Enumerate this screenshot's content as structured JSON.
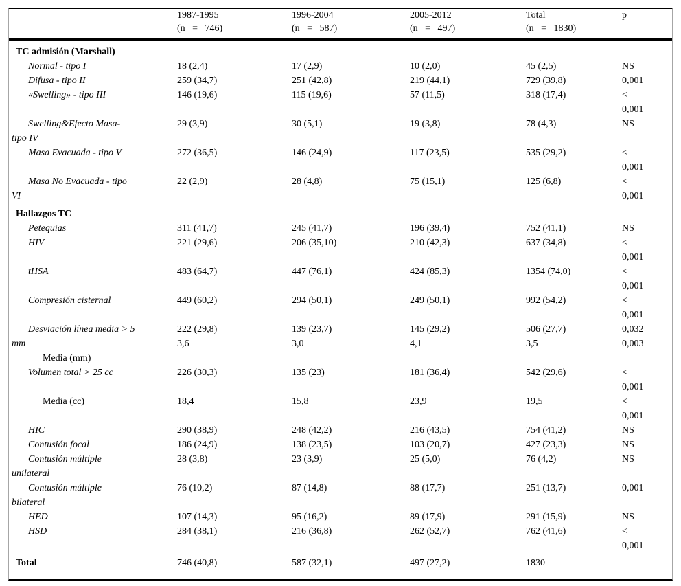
{
  "colors": {
    "background": "#ffffff",
    "text": "#000000",
    "rule": "#000000",
    "edge_line": "#a6a6a6"
  },
  "table": {
    "header": {
      "columns": [
        {
          "line1": "1987-1995",
          "line2": "(n   =   746)"
        },
        {
          "line1": "1996-2004",
          "line2": "(n   =   587)"
        },
        {
          "line1": "2005-2012",
          "line2": "(n   =   497)"
        },
        {
          "line1": "Total",
          "line2": "(n   =   1830)"
        },
        {
          "line1": "p",
          "line2": ""
        }
      ]
    },
    "rows": [
      {
        "label": [
          "TC admisión (Marshall)"
        ],
        "label_styles": [
          "section"
        ],
        "cells": [
          [],
          [],
          [],
          [],
          []
        ],
        "gap": 0
      },
      {
        "label": [
          "Normal - tipo I"
        ],
        "label_styles": [
          "item"
        ],
        "cells": [
          [
            "18 (2,4)"
          ],
          [
            "17 (2,9)"
          ],
          [
            "10 (2,0)"
          ],
          [
            "45 (2,5)"
          ],
          [
            "NS"
          ]
        ],
        "gap": 0
      },
      {
        "label": [
          "Difusa - tipo II"
        ],
        "label_styles": [
          "item"
        ],
        "cells": [
          [
            "259 (34,7)"
          ],
          [
            "251 (42,8)"
          ],
          [
            "219 (44,1)"
          ],
          [
            "729 (39,8)"
          ],
          [
            "0,001"
          ]
        ],
        "gap": 0
      },
      {
        "label": [
          "«Swelling» - tipo III"
        ],
        "label_styles": [
          "item"
        ],
        "cells": [
          [
            "146 (19,6)"
          ],
          [
            "115 (19,6)"
          ],
          [
            "57 (11,5)"
          ],
          [
            "318 (17,4)"
          ],
          [
            "<",
            "0,001"
          ]
        ],
        "gap": 0
      },
      {
        "label": [
          "Swelling&Efecto Masa-",
          "tipo IV"
        ],
        "label_styles": [
          "item",
          "cont"
        ],
        "cells": [
          [
            "29 (3,9)"
          ],
          [
            "30 (5,1)"
          ],
          [
            "19 (3,8)"
          ],
          [
            "78 (4,3)"
          ],
          [
            "NS"
          ]
        ],
        "gap": 0
      },
      {
        "label": [
          "Masa Evacuada - tipo V"
        ],
        "label_styles": [
          "item"
        ],
        "cells": [
          [
            "272 (36,5)"
          ],
          [
            "146 (24,9)"
          ],
          [
            "117 (23,5)"
          ],
          [
            "535 (29,2)"
          ],
          [
            "<",
            "0,001"
          ]
        ],
        "gap": 0
      },
      {
        "label": [
          "Masa No Evacuada - tipo",
          "VI"
        ],
        "label_styles": [
          "item",
          "cont"
        ],
        "cells": [
          [
            "22 (2,9)"
          ],
          [
            "28 (4,8)"
          ],
          [
            "75 (15,1)"
          ],
          [
            "125 (6,8)"
          ],
          [
            "<",
            "0,001"
          ]
        ],
        "gap": 0
      },
      {
        "label": [
          "Hallazgos TC"
        ],
        "label_styles": [
          "section"
        ],
        "cells": [
          [],
          [],
          [],
          [],
          []
        ],
        "gap": 5
      },
      {
        "label": [
          "Petequias"
        ],
        "label_styles": [
          "item"
        ],
        "cells": [
          [
            "311 (41,7)"
          ],
          [
            "245 (41,7)"
          ],
          [
            "196 (39,4)"
          ],
          [
            "752 (41,1)"
          ],
          [
            "NS"
          ]
        ],
        "gap": 0
      },
      {
        "label": [
          "HIV"
        ],
        "label_styles": [
          "item"
        ],
        "cells": [
          [
            "221 (29,6)"
          ],
          [
            "206 (35,10)"
          ],
          [
            "210 (42,3)"
          ],
          [
            "637 (34,8)"
          ],
          [
            "<",
            "0,001"
          ]
        ],
        "gap": 0
      },
      {
        "label": [
          "tHSA"
        ],
        "label_styles": [
          "item"
        ],
        "cells": [
          [
            "483 (64,7)"
          ],
          [
            "447 (76,1)"
          ],
          [
            "424 (85,3)"
          ],
          [
            "1354 (74,0)"
          ],
          [
            "<",
            "0,001"
          ]
        ],
        "gap": 0
      },
      {
        "label": [
          "Compresión cisternal"
        ],
        "label_styles": [
          "item"
        ],
        "cells": [
          [
            "449 (60,2)"
          ],
          [
            "294 (50,1)"
          ],
          [
            "249 (50,1)"
          ],
          [
            "992 (54,2)"
          ],
          [
            "<",
            "0,001"
          ]
        ],
        "gap": 0
      },
      {
        "label": [
          "Desviación línea media > 5",
          "mm",
          "Media (mm)"
        ],
        "label_styles": [
          "item",
          "cont",
          "media"
        ],
        "cells": [
          [
            "222 (29,8)",
            "3,6"
          ],
          [
            "139 (23,7)",
            "3,0"
          ],
          [
            "145 (29,2)",
            "4,1"
          ],
          [
            "506 (27,7)",
            "3,5"
          ],
          [
            "0,032",
            "0,003"
          ]
        ],
        "gap": 0
      },
      {
        "label": [
          "Volumen total > 25 cc"
        ],
        "label_styles": [
          "item"
        ],
        "cells": [
          [
            "226 (30,3)"
          ],
          [
            "135 (23)"
          ],
          [
            "181 (36,4)"
          ],
          [
            "542 (29,6)"
          ],
          [
            "<",
            "0,001"
          ]
        ],
        "gap": 0
      },
      {
        "label": [
          "Media (cc)"
        ],
        "label_styles": [
          "media"
        ],
        "cells": [
          [
            "18,4"
          ],
          [
            "15,8"
          ],
          [
            "23,9"
          ],
          [
            "19,5"
          ],
          [
            "<",
            "0,001"
          ]
        ],
        "gap": 0
      },
      {
        "label": [
          "HIC"
        ],
        "label_styles": [
          "item"
        ],
        "cells": [
          [
            "290 (38,9)"
          ],
          [
            "248 (42,2)"
          ],
          [
            "216 (43,5)"
          ],
          [
            "754 (41,2)"
          ],
          [
            "NS"
          ]
        ],
        "gap": 0
      },
      {
        "label": [
          "Contusión focal"
        ],
        "label_styles": [
          "item"
        ],
        "cells": [
          [
            "186 (24,9)"
          ],
          [
            "138 (23,5)"
          ],
          [
            "103 (20,7)"
          ],
          [
            "427 (23,3)"
          ],
          [
            "NS"
          ]
        ],
        "gap": 0
      },
      {
        "label": [
          "Contusión múltiple",
          "unilateral"
        ],
        "label_styles": [
          "item",
          "cont"
        ],
        "cells": [
          [
            "28 (3,8)"
          ],
          [
            "23 (3,9)"
          ],
          [
            "25 (5,0)"
          ],
          [
            "76 (4,2)"
          ],
          [
            "NS"
          ]
        ],
        "gap": 0
      },
      {
        "label": [
          "Contusión múltiple",
          "bilateral"
        ],
        "label_styles": [
          "item",
          "cont"
        ],
        "cells": [
          [
            "76 (10,2)"
          ],
          [
            "87 (14,8)"
          ],
          [
            "88 (17,7)"
          ],
          [
            "251 (13,7)"
          ],
          [
            "0,001"
          ]
        ],
        "gap": 0
      },
      {
        "label": [
          "HED"
        ],
        "label_styles": [
          "item"
        ],
        "cells": [
          [
            "107 (14,3)"
          ],
          [
            "95 (16,2)"
          ],
          [
            "89 (17,9)"
          ],
          [
            "291 (15,9)"
          ],
          [
            "NS"
          ]
        ],
        "gap": 0
      },
      {
        "label": [
          "HSD"
        ],
        "label_styles": [
          "item"
        ],
        "cells": [
          [
            "284 (38,1)"
          ],
          [
            "216 (36,8)"
          ],
          [
            "262 (52,7)"
          ],
          [
            "762 (41,6)"
          ],
          [
            "<",
            "0,001"
          ]
        ],
        "gap": 0
      },
      {
        "label": [
          "Total"
        ],
        "label_styles": [
          "total"
        ],
        "cells": [
          [
            "746 (40,8)"
          ],
          [
            "587 (32,1)"
          ],
          [
            "497 (27,2)"
          ],
          [
            "1830"
          ],
          []
        ],
        "gap": 4
      }
    ]
  }
}
